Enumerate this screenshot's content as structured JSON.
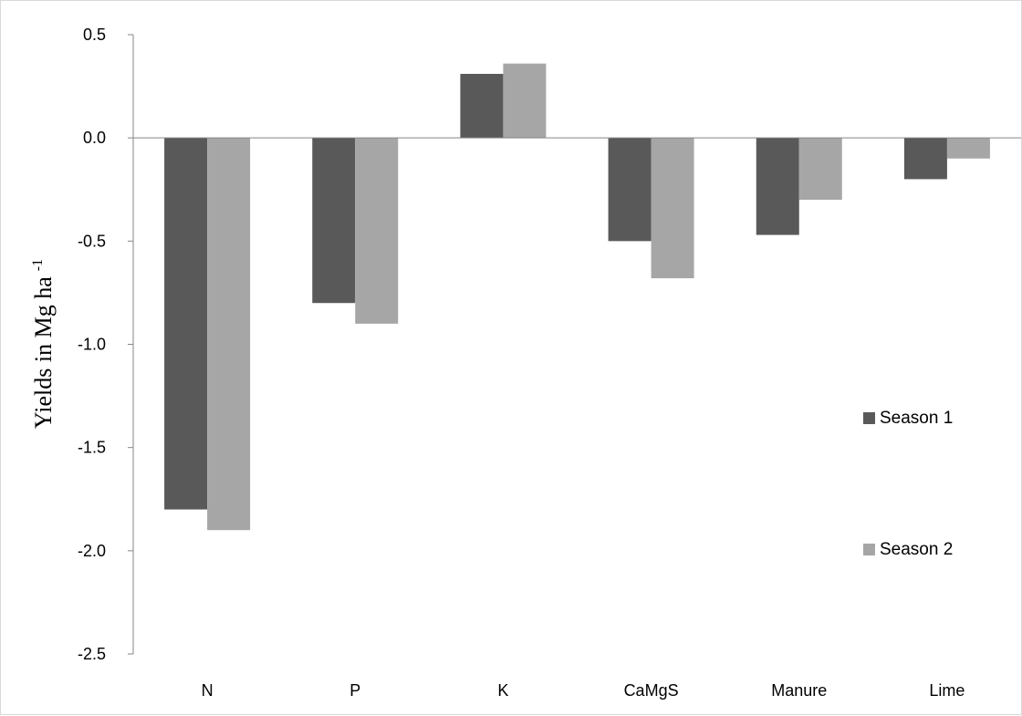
{
  "chart_data": {
    "type": "bar",
    "title": "",
    "xlabel": "",
    "ylabel": "Yields in Mg ha",
    "ylabel_superscript": "-1",
    "categories": [
      "N",
      "P",
      "K",
      "CaMgS",
      "Manure",
      "Lime"
    ],
    "series": [
      {
        "name": "Season 1",
        "color": "#595959",
        "values": [
          -1.8,
          -0.8,
          0.31,
          -0.5,
          -0.47,
          -0.2
        ]
      },
      {
        "name": "Season 2",
        "color": "#a6a6a6",
        "values": [
          -1.9,
          -0.9,
          0.36,
          -0.68,
          -0.3,
          -0.1
        ]
      }
    ],
    "ylim": [
      -2.5,
      0.5
    ],
    "yticks": [
      0.5,
      0.0,
      -0.5,
      -1.0,
      -1.5,
      -2.0,
      -2.5
    ],
    "ytick_labels": [
      "0.5",
      "0.0",
      "-0.5",
      "-1.0",
      "-1.5",
      "-2.0",
      "-2.5"
    ],
    "grid": false,
    "legend_position": "right"
  }
}
